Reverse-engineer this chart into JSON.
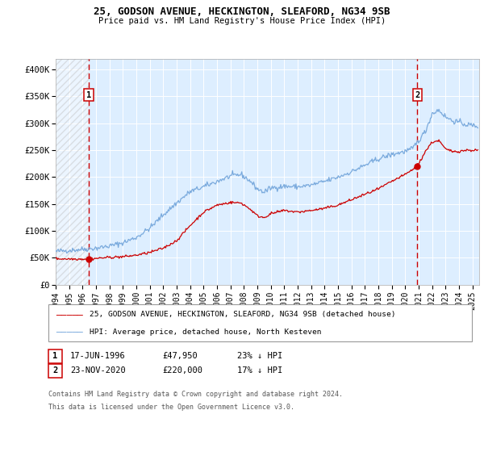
{
  "title": "25, GODSON AVENUE, HECKINGTON, SLEAFORD, NG34 9SB",
  "subtitle": "Price paid vs. HM Land Registry's House Price Index (HPI)",
  "background_color": "#ffffff",
  "plot_bg_color": "#ddeeff",
  "grid_color": "#ffffff",
  "red_line_color": "#cc0000",
  "blue_line_color": "#7aaadd",
  "marker1_date": 1996.46,
  "marker1_value": 47950,
  "marker2_date": 2020.9,
  "marker2_value": 220000,
  "xlim_left": 1994.0,
  "xlim_right": 2025.5,
  "ylim_bottom": 0,
  "ylim_top": 420000,
  "legend_red_label": "25, GODSON AVENUE, HECKINGTON, SLEAFORD, NG34 9SB (detached house)",
  "legend_blue_label": "HPI: Average price, detached house, North Kesteven",
  "annotation1_date": "17-JUN-1996",
  "annotation1_price": "£47,950",
  "annotation1_hpi": "23% ↓ HPI",
  "annotation2_date": "23-NOV-2020",
  "annotation2_price": "£220,000",
  "annotation2_hpi": "17% ↓ HPI",
  "footer1": "Contains HM Land Registry data © Crown copyright and database right 2024.",
  "footer2": "This data is licensed under the Open Government Licence v3.0.",
  "yticks": [
    0,
    50000,
    100000,
    150000,
    200000,
    250000,
    300000,
    350000,
    400000
  ],
  "ytick_labels": [
    "£0",
    "£50K",
    "£100K",
    "£150K",
    "£200K",
    "£250K",
    "£300K",
    "£350K",
    "£400K"
  ],
  "xticks": [
    1994,
    1995,
    1996,
    1997,
    1998,
    1999,
    2000,
    2001,
    2002,
    2003,
    2004,
    2005,
    2006,
    2007,
    2008,
    2009,
    2010,
    2011,
    2012,
    2013,
    2014,
    2015,
    2016,
    2017,
    2018,
    2019,
    2020,
    2021,
    2022,
    2023,
    2024,
    2025
  ]
}
